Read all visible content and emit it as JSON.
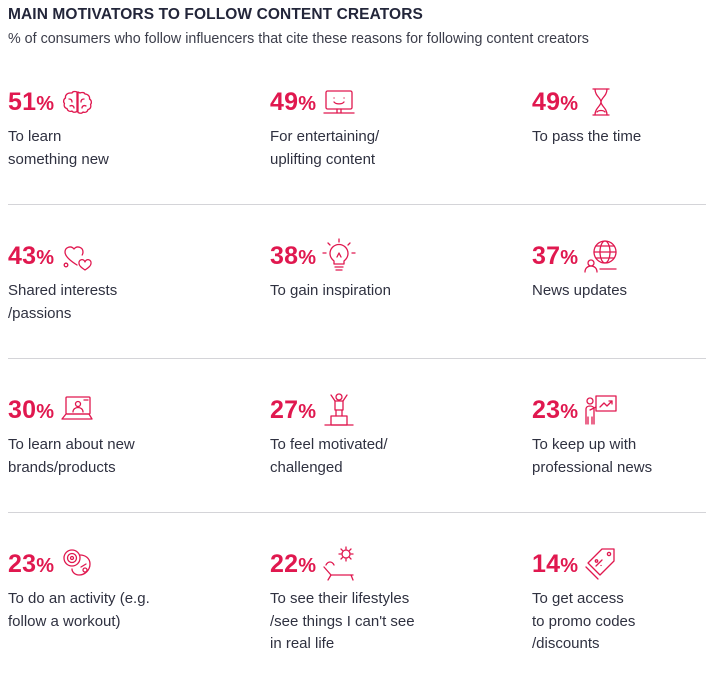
{
  "title": "MAIN MOTIVATORS TO FOLLOW CONTENT CREATORS",
  "subtitle": "% of consumers who follow influencers that cite these reasons for following content creators",
  "accent_color": "#e0184f",
  "chart_data": {
    "type": "table",
    "items": [
      {
        "value": 51,
        "display": "51",
        "label": "To learn\nsomething new",
        "icon": "brain-icon"
      },
      {
        "value": 49,
        "display": "49",
        "label": "For entertaining/\nuplifting content",
        "icon": "screen-smile-icon"
      },
      {
        "value": 49,
        "display": "49",
        "label": "To pass the time",
        "icon": "hourglass-icon"
      },
      {
        "value": 43,
        "display": "43",
        "label": "Shared interests\n/passions",
        "icon": "hearts-icon"
      },
      {
        "value": 38,
        "display": "38",
        "label": "To gain inspiration",
        "icon": "lightbulb-icon"
      },
      {
        "value": 37,
        "display": "37",
        "label": "News updates",
        "icon": "globe-icon"
      },
      {
        "value": 30,
        "display": "30",
        "label": "To learn about new\nbrands/products",
        "icon": "laptop-user-icon"
      },
      {
        "value": 27,
        "display": "27",
        "label": "To feel motivated/\nchallenged",
        "icon": "person-podium-icon"
      },
      {
        "value": 23,
        "display": "23",
        "label": "To keep up with\nprofessional news",
        "icon": "presenter-board-icon"
      },
      {
        "value": 23,
        "display": "23",
        "label": "To do an activity (e.g.\nfollow a workout)",
        "icon": "workout-icon"
      },
      {
        "value": 22,
        "display": "22",
        "label": "To see their lifestyles\n/see things I can't see\nin real life",
        "icon": "sun-lounger-icon"
      },
      {
        "value": 14,
        "display": "14",
        "label": "To get access\nto promo codes\n/discounts",
        "icon": "discount-tag-icon"
      }
    ]
  }
}
